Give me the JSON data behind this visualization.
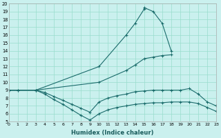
{
  "xlabel": "Humidex (Indice chaleur)",
  "bg_color": "#caf0ee",
  "grid_color": "#99ddcc",
  "line_color": "#1a6b6b",
  "xlim": [
    0,
    23
  ],
  "ylim": [
    5,
    20
  ],
  "xticks": [
    0,
    1,
    2,
    3,
    4,
    5,
    6,
    7,
    8,
    9,
    10,
    11,
    12,
    13,
    14,
    15,
    16,
    17,
    18,
    19,
    20,
    21,
    22,
    23
  ],
  "yticks": [
    5,
    6,
    7,
    8,
    9,
    10,
    11,
    12,
    13,
    14,
    15,
    16,
    17,
    18,
    19,
    20
  ],
  "lines": [
    {
      "x": [
        0,
        3,
        10,
        13,
        14,
        15,
        15,
        16,
        17,
        18
      ],
      "y": [
        9,
        9,
        12,
        16,
        17.5,
        19.3,
        19.5,
        19.0,
        17.5,
        14.0
      ]
    },
    {
      "x": [
        0,
        3,
        10,
        13,
        14,
        15,
        16,
        17,
        18
      ],
      "y": [
        9,
        9,
        10,
        11.5,
        12.2,
        13.0,
        13.2,
        13.4,
        13.5
      ]
    },
    {
      "x": [
        0,
        1,
        3,
        4,
        5,
        6,
        7,
        8,
        9,
        10,
        11,
        12,
        13,
        14,
        15,
        16,
        17,
        18,
        19,
        20,
        21,
        22,
        23
      ],
      "y": [
        9,
        9,
        9,
        8.7,
        8.2,
        7.7,
        7.2,
        6.7,
        6.2,
        7.5,
        8.0,
        8.3,
        8.5,
        8.8,
        8.9,
        9.0,
        9.0,
        9.0,
        9.0,
        9.2,
        8.5,
        7.5,
        7.0
      ]
    },
    {
      "x": [
        0,
        1,
        3,
        4,
        5,
        6,
        7,
        8,
        9,
        10,
        11,
        12,
        13,
        14,
        15,
        16,
        17,
        18,
        19,
        20,
        21,
        22,
        23
      ],
      "y": [
        9,
        9,
        9,
        8.5,
        7.8,
        7.2,
        6.5,
        5.8,
        5.2,
        6.0,
        6.5,
        6.8,
        7.0,
        7.2,
        7.3,
        7.4,
        7.4,
        7.5,
        7.5,
        7.5,
        7.3,
        6.8,
        6.3
      ]
    }
  ]
}
